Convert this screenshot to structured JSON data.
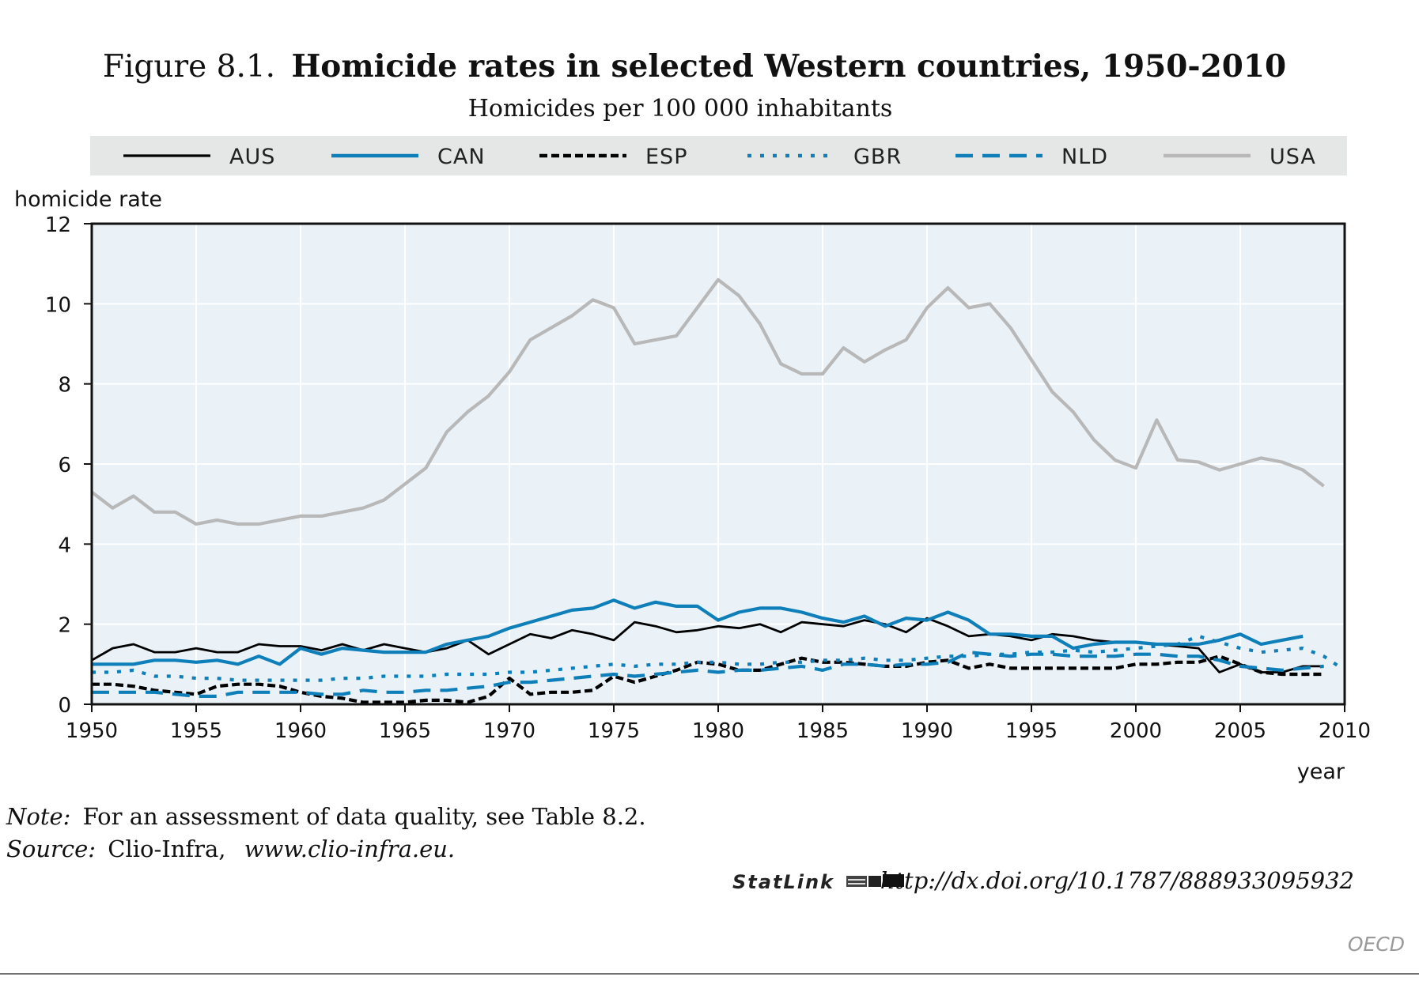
{
  "figure": {
    "label": "Figure 8.1.",
    "title": "Homicide rates in selected Western countries, 1950-2010",
    "subtitle": "Homicides per 100 000 inhabitants",
    "note_label": "Note:",
    "note_text": "For an assessment of data quality, see Table 8.2.",
    "source_label": "Source:",
    "source_text": "Clio-Infra,",
    "source_url": "www.clio-infra.eu.",
    "statlink_label": "StatLink",
    "statlink_url": "http://dx.doi.org/10.1787/888933095932",
    "watermark": "OECD"
  },
  "chart_data": {
    "type": "line",
    "ylabel": "homicide rate",
    "xlabel": "year",
    "xlim": [
      1950,
      2010
    ],
    "ylim": [
      0,
      12
    ],
    "x_ticks": [
      "1950",
      "1955",
      "1960",
      "1965",
      "1970",
      "1975",
      "1980",
      "1985",
      "1990",
      "1995",
      "2000",
      "2005",
      "2010"
    ],
    "y_ticks": [
      "0",
      "2",
      "4",
      "6",
      "8",
      "10",
      "12"
    ],
    "legend_position": "top",
    "grid": true,
    "series": [
      {
        "name": "AUS",
        "color": "#000000",
        "style": "solid",
        "x": [
          1950,
          1951,
          1952,
          1953,
          1954,
          1955,
          1956,
          1957,
          1958,
          1959,
          1960,
          1961,
          1962,
          1963,
          1964,
          1965,
          1966,
          1967,
          1968,
          1969,
          1970,
          1971,
          1972,
          1973,
          1974,
          1975,
          1976,
          1977,
          1978,
          1979,
          1980,
          1981,
          1982,
          1983,
          1984,
          1985,
          1986,
          1987,
          1988,
          1989,
          1990,
          1991,
          1992,
          1993,
          1994,
          1995,
          1996,
          1997,
          1998,
          1999,
          2000,
          2001,
          2002,
          2003,
          2004,
          2005,
          2006,
          2007,
          2008,
          2009
        ],
        "values": [
          1.1,
          1.4,
          1.5,
          1.3,
          1.3,
          1.4,
          1.3,
          1.3,
          1.5,
          1.45,
          1.45,
          1.35,
          1.5,
          1.35,
          1.5,
          1.4,
          1.3,
          1.4,
          1.6,
          1.25,
          1.5,
          1.75,
          1.65,
          1.85,
          1.75,
          1.6,
          2.05,
          1.95,
          1.8,
          1.85,
          1.95,
          1.9,
          2.0,
          1.8,
          2.05,
          2.0,
          1.95,
          2.1,
          2.0,
          1.8,
          2.15,
          1.95,
          1.7,
          1.75,
          1.7,
          1.6,
          1.75,
          1.7,
          1.6,
          1.55,
          1.55,
          1.5,
          1.45,
          1.4,
          0.8,
          1.0,
          0.8,
          0.8,
          0.95,
          0.95
        ]
      },
      {
        "name": "CAN",
        "color": "#0f7fba",
        "style": "solid",
        "x": [
          1950,
          1951,
          1952,
          1953,
          1954,
          1955,
          1956,
          1957,
          1958,
          1959,
          1960,
          1961,
          1962,
          1963,
          1964,
          1965,
          1966,
          1967,
          1968,
          1969,
          1970,
          1971,
          1972,
          1973,
          1974,
          1975,
          1976,
          1977,
          1978,
          1979,
          1980,
          1981,
          1982,
          1983,
          1984,
          1985,
          1986,
          1987,
          1988,
          1989,
          1990,
          1991,
          1992,
          1993,
          1994,
          1995,
          1996,
          1997,
          1998,
          1999,
          2000,
          2001,
          2002,
          2003,
          2004,
          2005,
          2006,
          2007,
          2008
        ],
        "values": [
          1.0,
          1.0,
          1.0,
          1.1,
          1.1,
          1.05,
          1.1,
          1.0,
          1.2,
          1.0,
          1.4,
          1.25,
          1.4,
          1.35,
          1.3,
          1.3,
          1.3,
          1.5,
          1.6,
          1.7,
          1.9,
          2.05,
          2.2,
          2.35,
          2.4,
          2.6,
          2.4,
          2.55,
          2.45,
          2.45,
          2.1,
          2.3,
          2.4,
          2.4,
          2.3,
          2.15,
          2.05,
          2.2,
          1.95,
          2.15,
          2.1,
          2.3,
          2.1,
          1.75,
          1.75,
          1.7,
          1.7,
          1.4,
          1.5,
          1.55,
          1.55,
          1.5,
          1.5,
          1.5,
          1.6,
          1.75,
          1.5,
          1.6,
          1.7
        ]
      },
      {
        "name": "ESP",
        "color": "#000000",
        "style": "dense-dash",
        "x": [
          1950,
          1951,
          1952,
          1953,
          1954,
          1955,
          1956,
          1957,
          1958,
          1959,
          1960,
          1961,
          1962,
          1963,
          1964,
          1965,
          1966,
          1967,
          1968,
          1969,
          1970,
          1971,
          1972,
          1973,
          1974,
          1975,
          1976,
          1977,
          1978,
          1979,
          1980,
          1981,
          1982,
          1983,
          1984,
          1985,
          1986,
          1987,
          1988,
          1989,
          1990,
          1991,
          1992,
          1993,
          1994,
          1995,
          1996,
          1997,
          1998,
          1999,
          2000,
          2001,
          2002,
          2003,
          2004,
          2005,
          2006,
          2007,
          2008,
          2009
        ],
        "values": [
          0.5,
          0.5,
          0.45,
          0.35,
          0.3,
          0.25,
          0.45,
          0.5,
          0.5,
          0.45,
          0.3,
          0.2,
          0.15,
          0.05,
          0.05,
          0.05,
          0.1,
          0.1,
          0.05,
          0.2,
          0.65,
          0.25,
          0.3,
          0.3,
          0.35,
          0.7,
          0.55,
          0.7,
          0.85,
          1.05,
          1.0,
          0.85,
          0.85,
          1.0,
          1.15,
          1.05,
          1.05,
          1.0,
          0.95,
          0.95,
          1.05,
          1.1,
          0.9,
          1.0,
          0.9,
          0.9,
          0.9,
          0.9,
          0.9,
          0.9,
          1.0,
          1.0,
          1.05,
          1.05,
          1.2,
          1.0,
          0.8,
          0.75,
          0.75,
          0.75
        ]
      },
      {
        "name": "GBR",
        "color": "#0f7fba",
        "style": "dotted",
        "x": [
          1950,
          1951,
          1952,
          1953,
          1954,
          1955,
          1956,
          1957,
          1958,
          1959,
          1960,
          1961,
          1962,
          1963,
          1964,
          1965,
          1966,
          1967,
          1968,
          1969,
          1970,
          1971,
          1972,
          1973,
          1974,
          1975,
          1976,
          1977,
          1978,
          1979,
          1980,
          1981,
          1982,
          1983,
          1984,
          1985,
          1986,
          1987,
          1988,
          1989,
          1990,
          1991,
          1992,
          1993,
          1994,
          1995,
          1996,
          1997,
          1998,
          1999,
          2000,
          2001,
          2002,
          2003,
          2004,
          2005,
          2006,
          2007,
          2008,
          2009,
          2010
        ],
        "values": [
          0.8,
          0.8,
          0.85,
          0.7,
          0.7,
          0.65,
          0.65,
          0.6,
          0.6,
          0.6,
          0.6,
          0.6,
          0.65,
          0.65,
          0.7,
          0.7,
          0.7,
          0.75,
          0.75,
          0.75,
          0.8,
          0.8,
          0.85,
          0.9,
          0.95,
          1.0,
          0.95,
          1.0,
          1.0,
          1.05,
          1.05,
          1.0,
          1.0,
          1.05,
          1.05,
          1.1,
          1.1,
          1.15,
          1.1,
          1.1,
          1.15,
          1.2,
          1.2,
          1.25,
          1.25,
          1.3,
          1.3,
          1.35,
          1.3,
          1.35,
          1.4,
          1.45,
          1.5,
          1.7,
          1.55,
          1.4,
          1.3,
          1.35,
          1.4,
          1.2,
          0.85
        ]
      },
      {
        "name": "NLD",
        "color": "#0f7fba",
        "style": "dashed",
        "x": [
          1950,
          1951,
          1952,
          1953,
          1954,
          1955,
          1956,
          1957,
          1958,
          1959,
          1960,
          1961,
          1962,
          1963,
          1964,
          1965,
          1966,
          1967,
          1968,
          1969,
          1970,
          1971,
          1972,
          1973,
          1974,
          1975,
          1976,
          1977,
          1978,
          1979,
          1980,
          1981,
          1982,
          1983,
          1984,
          1985,
          1986,
          1987,
          1988,
          1989,
          1990,
          1991,
          1992,
          1993,
          1994,
          1995,
          1996,
          1997,
          1998,
          1999,
          2000,
          2001,
          2002,
          2003,
          2004,
          2005,
          2006,
          2007,
          2008,
          2009
        ],
        "values": [
          0.3,
          0.3,
          0.3,
          0.3,
          0.25,
          0.2,
          0.2,
          0.3,
          0.3,
          0.3,
          0.3,
          0.25,
          0.25,
          0.35,
          0.3,
          0.3,
          0.35,
          0.35,
          0.4,
          0.45,
          0.55,
          0.55,
          0.6,
          0.65,
          0.7,
          0.75,
          0.7,
          0.75,
          0.8,
          0.85,
          0.8,
          0.85,
          0.85,
          0.9,
          0.95,
          0.85,
          1.0,
          1.0,
          0.95,
          1.0,
          1.0,
          1.05,
          1.3,
          1.25,
          1.2,
          1.25,
          1.25,
          1.2,
          1.2,
          1.2,
          1.25,
          1.25,
          1.2,
          1.2,
          1.1,
          0.95,
          0.9,
          0.85,
          0.9,
          0.95
        ]
      },
      {
        "name": "USA",
        "color": "#b8b8b8",
        "style": "solid",
        "x": [
          1950,
          1951,
          1952,
          1953,
          1954,
          1955,
          1956,
          1957,
          1958,
          1959,
          1960,
          1961,
          1962,
          1963,
          1964,
          1965,
          1966,
          1967,
          1968,
          1969,
          1970,
          1971,
          1972,
          1973,
          1974,
          1975,
          1976,
          1977,
          1978,
          1979,
          1980,
          1981,
          1982,
          1983,
          1984,
          1985,
          1986,
          1987,
          1988,
          1989,
          1990,
          1991,
          1992,
          1993,
          1994,
          1995,
          1996,
          1997,
          1998,
          1999,
          2000,
          2001,
          2002,
          2003,
          2004,
          2005,
          2006,
          2007,
          2008,
          2009
        ],
        "values": [
          5.3,
          4.9,
          5.2,
          4.8,
          4.8,
          4.5,
          4.6,
          4.5,
          4.5,
          4.6,
          4.7,
          4.7,
          4.8,
          4.9,
          5.1,
          5.5,
          5.9,
          6.8,
          7.3,
          7.7,
          8.3,
          9.1,
          9.4,
          9.7,
          10.1,
          9.9,
          9.0,
          9.1,
          9.2,
          9.9,
          10.6,
          10.2,
          9.5,
          8.5,
          8.25,
          8.25,
          8.9,
          8.55,
          8.85,
          9.1,
          9.9,
          10.4,
          9.9,
          10.0,
          9.4,
          8.6,
          7.8,
          7.3,
          6.6,
          6.1,
          5.9,
          7.1,
          6.1,
          6.05,
          5.85,
          6.0,
          6.15,
          6.05,
          5.85,
          5.45
        ]
      }
    ]
  }
}
